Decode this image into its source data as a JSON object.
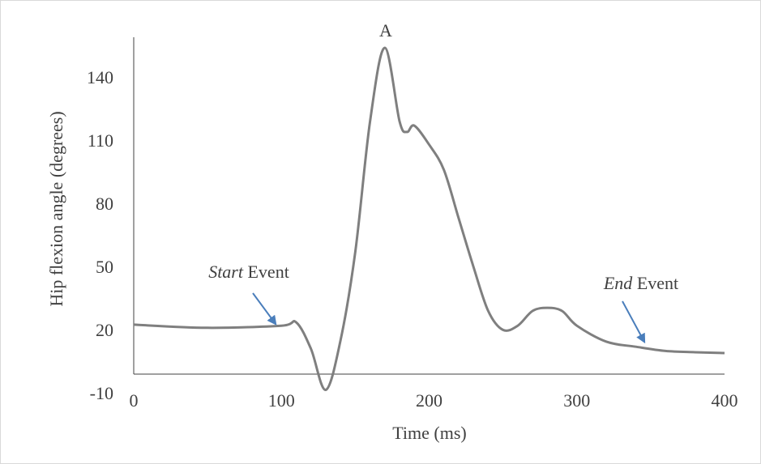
{
  "chart_data": {
    "type": "line",
    "x_label": "Time (ms)",
    "y_label": "Hip flexion angle (degrees)",
    "x": [
      0,
      50,
      100,
      110,
      120,
      130,
      140,
      150,
      160,
      170,
      180,
      185,
      190,
      200,
      210,
      220,
      230,
      240,
      250,
      260,
      270,
      280,
      290,
      300,
      320,
      340,
      360,
      380,
      400
    ],
    "values": [
      23.5,
      22,
      23,
      24.6,
      12,
      -7.5,
      16,
      58,
      120,
      155,
      120,
      115,
      118,
      109,
      97,
      74,
      51,
      30,
      21,
      23,
      30,
      31.5,
      30,
      23,
      15.4,
      13,
      11,
      10.4,
      10
    ],
    "color": "#7f7f7f",
    "xlim": [
      0,
      400
    ],
    "xticks": [
      0,
      100,
      200,
      300,
      400
    ],
    "ylim": [
      -10,
      160
    ],
    "yticks": [
      -10,
      20,
      50,
      80,
      110,
      140
    ],
    "annotations": [
      {
        "label": "A"
      },
      {
        "italic": "Start",
        "label": "Event"
      },
      {
        "italic": "End",
        "label": "Event"
      }
    ],
    "arrow_color": "#4a7ebb"
  }
}
